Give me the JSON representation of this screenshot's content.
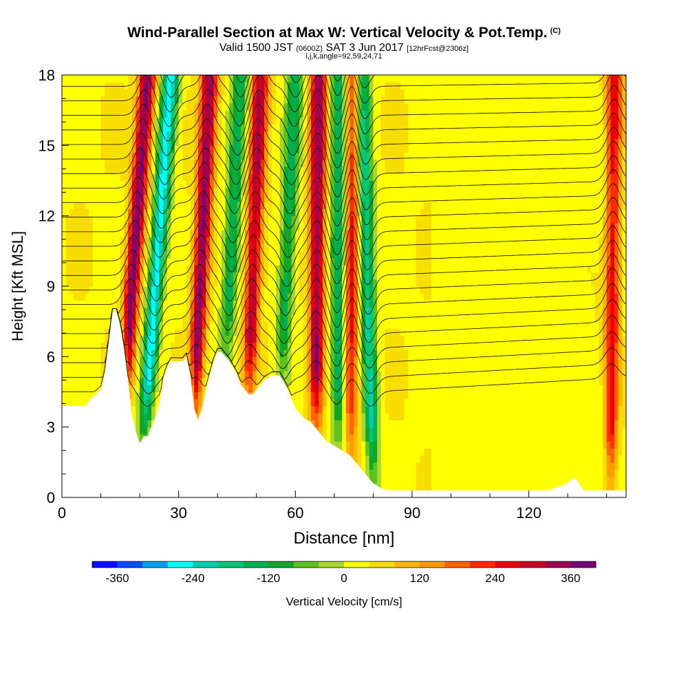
{
  "title": {
    "main": "Wind-Parallel Section at Max W: Vertical Velocity & Pot.Temp.",
    "copyright": "(C)",
    "valid_prefix": "Valid 1500 JST",
    "valid_utc": "(0600Z)",
    "valid_date": "SAT 3 Jun 2017",
    "forecast": "[12hrFcst@2306z]",
    "indices": "i,j,k,angle=92,59,24,71"
  },
  "colors": {
    "terrain": "#ffffff",
    "contour": "#000000",
    "palette": [
      "#0010ee",
      "#0050f5",
      "#00a0f5",
      "#00ffff",
      "#00d0b0",
      "#00c878",
      "#00b050",
      "#11a628",
      "#5ec21e",
      "#a6d82d",
      "#ffff00",
      "#f8de00",
      "#ffb800",
      "#ff9a00",
      "#ff6400",
      "#ff2c00",
      "#ee0000",
      "#c80028",
      "#a00050",
      "#780078"
    ]
  },
  "chart_data": {
    "type": "heatmap",
    "xlabel": "Distance [nm]",
    "ylabel": "Height [Kft MSL]",
    "xlim": [
      0,
      145
    ],
    "ylim": [
      0,
      18
    ],
    "xticks": [
      0,
      30,
      60,
      90,
      120
    ],
    "yticks": [
      0,
      3,
      6,
      9,
      12,
      15,
      18
    ],
    "colorbar": {
      "label": "Vertical Velocity [cm/s]",
      "min": -400,
      "max": 400,
      "step": 40,
      "tick_values": [
        -360,
        -240,
        -120,
        0,
        120,
        240,
        360
      ]
    },
    "terrain_height_kft": {
      "x": [
        0,
        6,
        8,
        10,
        11,
        12,
        13,
        14,
        15,
        16,
        17,
        18,
        19,
        20,
        21,
        22,
        23,
        24,
        25,
        26,
        27,
        28,
        29,
        30,
        31,
        32,
        33,
        34,
        35,
        36,
        37,
        38,
        39,
        40,
        41,
        42,
        43,
        44,
        45,
        46,
        47,
        48,
        49,
        50,
        52,
        54,
        56,
        58,
        60,
        62,
        64,
        66,
        68,
        70,
        72,
        74,
        76,
        78,
        80,
        82,
        84,
        86,
        88,
        90,
        95,
        100,
        105,
        110,
        115,
        120,
        125,
        130,
        131,
        132,
        133,
        134,
        135,
        136,
        137,
        138,
        139,
        140,
        141,
        142,
        143,
        145
      ],
      "y": [
        3.9,
        3.9,
        4.3,
        4.6,
        5.3,
        6.6,
        7.9,
        7.9,
        7.3,
        6.3,
        5.0,
        3.5,
        2.8,
        2.3,
        2.6,
        2.6,
        3.0,
        3.4,
        4.0,
        5.0,
        5.5,
        5.8,
        5.8,
        5.8,
        5.8,
        6.0,
        5.2,
        3.8,
        3.3,
        3.8,
        4.6,
        5.2,
        5.8,
        6.2,
        6.2,
        6.0,
        5.8,
        5.5,
        5.2,
        4.8,
        4.6,
        4.4,
        4.4,
        4.6,
        5.0,
        5.2,
        5.2,
        4.6,
        3.8,
        3.4,
        3.2,
        2.8,
        2.4,
        2.2,
        2.0,
        1.8,
        1.4,
        1.0,
        0.6,
        0.4,
        0.3,
        0.3,
        0.3,
        0.3,
        0.3,
        0.3,
        0.3,
        0.3,
        0.3,
        0.3,
        0.3,
        0.6,
        0.8,
        0.8,
        0.6,
        0.3,
        0.3,
        0.3,
        0.3,
        0.3,
        0.3,
        0.3,
        0.3,
        0.3,
        0.3,
        0.3
      ]
    },
    "updraft_bands": [
      {
        "x_bottom": 14,
        "x_top": 22,
        "w_max": 340,
        "sign": 1
      },
      {
        "x_bottom": 20,
        "x_top": 28,
        "w_max": 300,
        "sign": -1
      },
      {
        "x_bottom": 33,
        "x_top": 38,
        "w_max": 330,
        "sign": 1
      },
      {
        "x_bottom": 40,
        "x_top": 46,
        "w_max": 180,
        "sign": -1
      },
      {
        "x_bottom": 47,
        "x_top": 51,
        "w_max": 290,
        "sign": 1
      },
      {
        "x_bottom": 55,
        "x_top": 60,
        "w_max": 170,
        "sign": -1
      },
      {
        "x_bottom": 65,
        "x_top": 66,
        "w_max": 320,
        "sign": 1
      },
      {
        "x_bottom": 71,
        "x_top": 71,
        "w_max": 200,
        "sign": -1
      },
      {
        "x_bottom": 74,
        "x_top": 75,
        "w_max": 220,
        "sign": 1
      },
      {
        "x_bottom": 80,
        "x_top": 77,
        "w_max": 240,
        "sign": -1
      },
      {
        "x_bottom": 141,
        "x_top": 142,
        "w_max": 240,
        "sign": 1
      }
    ],
    "theta_isentropes": {
      "count": 24,
      "base_height_kft": 4.5,
      "spacing_kft": 0.62
    }
  }
}
